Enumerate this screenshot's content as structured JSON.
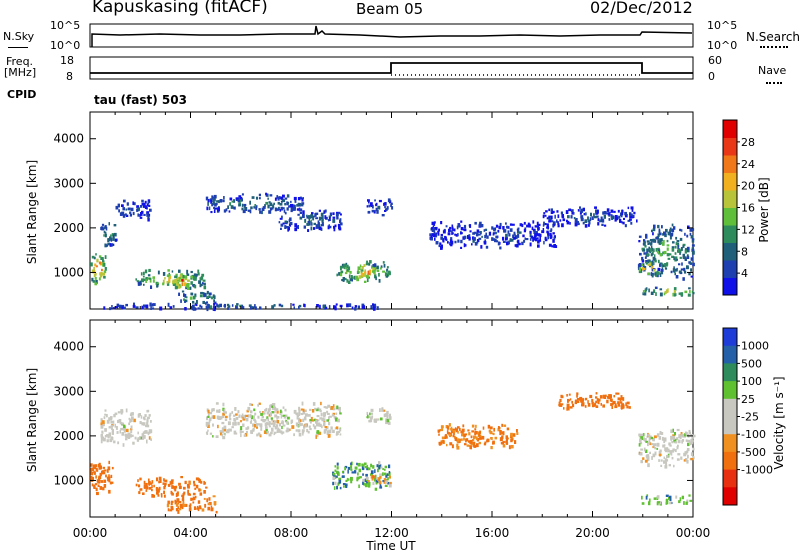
{
  "header": {
    "station": "Kapuskasing (fitACF)",
    "beam": "Beam 05",
    "date": "02/Dec/2012",
    "cpid_label": "CPID",
    "cpid_value": "tau (fast) 503"
  },
  "panels": {
    "nsky": {
      "left_label": "N.Sky",
      "right_label": "N.Search",
      "left_ticks": [
        "10^5",
        "10^0"
      ],
      "right_ticks": [
        "10^5",
        "10^0"
      ]
    },
    "freq": {
      "left_label_top": "Freq.",
      "left_label_unit": "[MHz]",
      "right_label": "Nave",
      "left_ticks": [
        "18",
        "8"
      ],
      "right_ticks": [
        "60",
        "0"
      ]
    }
  },
  "colors": {
    "power_scale": [
      "#1010e8",
      "#1e3fb0",
      "#1f5f7a",
      "#2e8c5c",
      "#5fbf3a",
      "#b8c43a",
      "#f0b020",
      "#f07818",
      "#e83818",
      "#e00000"
    ],
    "velocity_scale": [
      "#1e3cd8",
      "#2460a8",
      "#2e8c5c",
      "#5fc030",
      "#c8c8c0",
      "#c8c8c0",
      "#f09020",
      "#f07010",
      "#e83010",
      "#e00000"
    ]
  },
  "chart_data": [
    {
      "type": "heatmap",
      "title": "Power",
      "ylabel": "Slant Range [km]",
      "xlabel": "Time UT",
      "x_ticks": [
        "00:00",
        "04:00",
        "08:00",
        "12:00",
        "16:00",
        "20:00",
        "00:00"
      ],
      "y_ticks": [
        1000,
        2000,
        3000,
        4000
      ],
      "xlim": [
        0,
        24
      ],
      "ylim": [
        180,
        4600
      ],
      "colorbar": {
        "label": "Power [dB]",
        "ticks": [
          "4",
          "8",
          "12",
          "16",
          "20",
          "24",
          "28"
        ],
        "range": [
          0,
          32
        ]
      },
      "blobs": [
        {
          "t0": 0.0,
          "t1": 0.6,
          "r0": 700,
          "r1": 1500,
          "v": 24
        },
        {
          "t0": 0.4,
          "t1": 1.0,
          "r0": 1500,
          "r1": 2200,
          "v": 10
        },
        {
          "t0": 1.0,
          "t1": 2.4,
          "r0": 2200,
          "r1": 2650,
          "v": 6
        },
        {
          "t0": 1.8,
          "t1": 4.6,
          "r0": 650,
          "r1": 1100,
          "v": 18
        },
        {
          "t0": 3.2,
          "t1": 4.0,
          "r0": 650,
          "r1": 1000,
          "v": 28
        },
        {
          "t0": 3.5,
          "t1": 5.0,
          "r0": 300,
          "r1": 600,
          "v": 14
        },
        {
          "t0": 4.6,
          "t1": 8.5,
          "r0": 2350,
          "r1": 2800,
          "v": 9
        },
        {
          "t0": 7.5,
          "t1": 10.0,
          "r0": 1950,
          "r1": 2450,
          "v": 7
        },
        {
          "t0": 9.8,
          "t1": 11.9,
          "r0": 800,
          "r1": 1300,
          "v": 20
        },
        {
          "t0": 10.6,
          "t1": 11.5,
          "r0": 900,
          "r1": 1100,
          "v": 26
        },
        {
          "t0": 11.0,
          "t1": 12.0,
          "r0": 2300,
          "r1": 2700,
          "v": 6
        },
        {
          "t0": 13.5,
          "t1": 18.5,
          "r0": 1550,
          "r1": 2200,
          "v": 5
        },
        {
          "t0": 18.0,
          "t1": 21.8,
          "r0": 2050,
          "r1": 2500,
          "v": 5
        },
        {
          "t0": 21.8,
          "t1": 24.0,
          "r0": 850,
          "r1": 2150,
          "v": 12
        },
        {
          "t0": 21.8,
          "t1": 22.6,
          "r0": 950,
          "r1": 1300,
          "v": 24
        },
        {
          "t0": 21.9,
          "t1": 24.0,
          "r0": 500,
          "r1": 700,
          "v": 18
        },
        {
          "t0": 0.5,
          "t1": 11.5,
          "r0": 200,
          "r1": 330,
          "v": 7
        }
      ]
    },
    {
      "type": "heatmap",
      "title": "Velocity",
      "ylabel": "Slant Range [km]",
      "xlabel": "Time UT",
      "x_ticks": [
        "00:00",
        "04:00",
        "08:00",
        "12:00",
        "16:00",
        "20:00",
        "00:00"
      ],
      "y_ticks": [
        1000,
        2000,
        3000,
        4000
      ],
      "xlim": [
        0,
        24
      ],
      "ylim": [
        180,
        4600
      ],
      "colorbar": {
        "label": "Velocity [m s⁻¹]",
        "ticks": [
          "1000",
          "500",
          "100",
          "25",
          "-25",
          "-100",
          "-500",
          "-1000"
        ]
      },
      "blobs": [
        {
          "t0": 0.0,
          "t1": 0.9,
          "r0": 700,
          "r1": 1500,
          "v": -300
        },
        {
          "t0": 0.4,
          "t1": 2.4,
          "r0": 1800,
          "r1": 2650,
          "v": 0
        },
        {
          "t0": 1.8,
          "t1": 4.6,
          "r0": 650,
          "r1": 1100,
          "v": -200
        },
        {
          "t0": 3.0,
          "t1": 5.0,
          "r0": 300,
          "r1": 700,
          "v": -150
        },
        {
          "t0": 4.6,
          "t1": 10.0,
          "r0": 1950,
          "r1": 2800,
          "v": 0
        },
        {
          "t0": 9.6,
          "t1": 11.9,
          "r0": 800,
          "r1": 1450,
          "v": 80
        },
        {
          "t0": 10.8,
          "t1": 11.9,
          "r0": 950,
          "r1": 1150,
          "v": -60
        },
        {
          "t0": 11.0,
          "t1": 12.0,
          "r0": 2300,
          "r1": 2700,
          "v": 0
        },
        {
          "t0": 13.8,
          "t1": 17.0,
          "r0": 1700,
          "r1": 2300,
          "v": -120
        },
        {
          "t0": 18.6,
          "t1": 21.5,
          "r0": 2600,
          "r1": 3000,
          "v": -300
        },
        {
          "t0": 21.8,
          "t1": 24.0,
          "r0": 1300,
          "r1": 2200,
          "v": 0
        },
        {
          "t0": 21.9,
          "t1": 24.0,
          "r0": 500,
          "r1": 700,
          "v": 60
        }
      ]
    }
  ]
}
